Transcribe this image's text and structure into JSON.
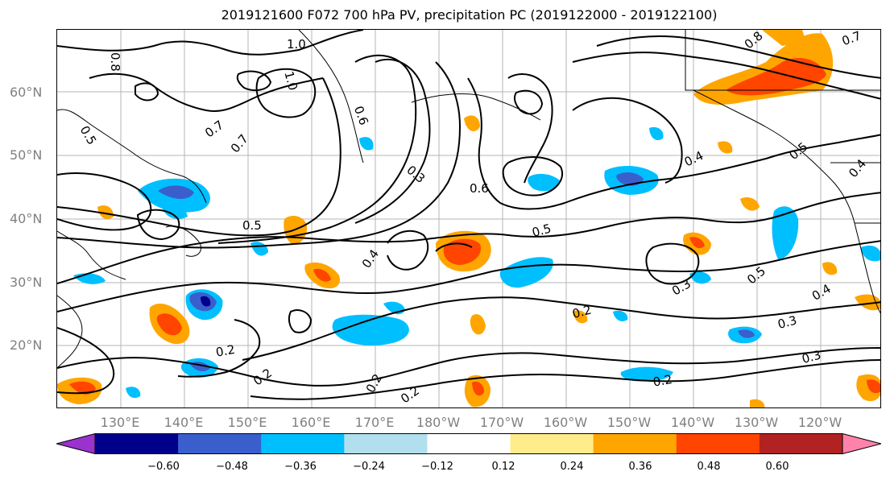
{
  "title": "2019121600 F072 700 hPa PV, precipitation PC (2019122000 - 2019122100)",
  "lat_labels": [
    "60°N",
    "50°N",
    "40°N",
    "30°N",
    "20°N"
  ],
  "lon_labels": [
    "130°E",
    "140°E",
    "150°E",
    "160°E",
    "170°E",
    "180°W",
    "170°W",
    "160°W",
    "150°W",
    "140°W",
    "130°W",
    "120°W"
  ],
  "colorbar": {
    "ticks": [
      "−0.60",
      "−0.48",
      "−0.36",
      "−0.24",
      "−0.12",
      "0.12",
      "0.24",
      "0.36",
      "0.48",
      "0.60"
    ],
    "colors": [
      "#9a32cd",
      "#00008b",
      "#3a5fcd",
      "#00bfff",
      "#b2dfee",
      "#ffffff",
      "#ffec8b",
      "#ffa500",
      "#ff4500",
      "#b22222",
      "#ff82ab"
    ]
  },
  "contour_labels": [
    "1.0",
    "0.8",
    "1.0",
    "0.5",
    "0.7",
    "0.7",
    "0.6",
    "0.3",
    "0.6",
    "0.4",
    "0.5",
    "0.5",
    "0.4",
    "0.4",
    "0.5",
    "0.3",
    "0.2",
    "0.2",
    "0.2",
    "0.2",
    "0.2",
    "0.3",
    "0.3",
    "0.4",
    "0.8",
    "0.7",
    "0.5",
    "0.2"
  ],
  "icons": {
    "colorbar_left": "triangle-left",
    "colorbar_right": "triangle-right"
  }
}
